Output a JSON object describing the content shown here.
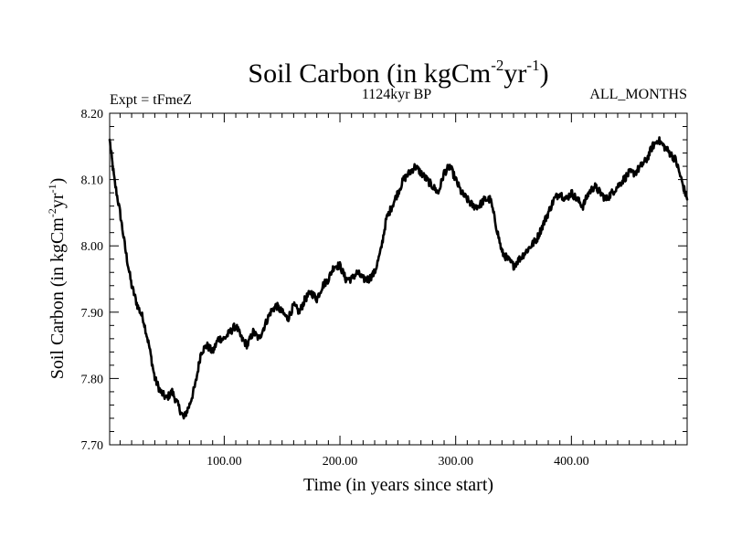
{
  "chart_data": {
    "type": "line",
    "title": {
      "main": "Soil Carbon (in kgCm",
      "sup1": "-2",
      "mid": "yr",
      "sup2": "-1",
      "end": ")"
    },
    "subtitle_left": "Expt = tFmeZ",
    "subtitle_center": "1124kyr BP",
    "subtitle_right": "ALL_MONTHS",
    "xlabel": "Time (in years since start)",
    "ylabel": {
      "main": "Soil Carbon (in kgCm",
      "sup1": "-2",
      "mid": "yr",
      "sup2": "-1",
      "end": ")"
    },
    "xlim": [
      1,
      500
    ],
    "ylim": [
      7.7,
      8.2
    ],
    "xticks": [
      {
        "value": 100,
        "label": "100.00"
      },
      {
        "value": 200,
        "label": "200.00"
      },
      {
        "value": 300,
        "label": "300.00"
      },
      {
        "value": 400,
        "label": "400.00"
      }
    ],
    "yticks": [
      {
        "value": 7.7,
        "label": "7.70"
      },
      {
        "value": 7.8,
        "label": "7.80"
      },
      {
        "value": 7.9,
        "label": "7.90"
      },
      {
        "value": 8.0,
        "label": "8.00"
      },
      {
        "value": 8.1,
        "label": "8.10"
      },
      {
        "value": 8.2,
        "label": "8.20"
      }
    ],
    "series": [
      {
        "name": "Soil Carbon",
        "x": [
          1,
          5,
          10,
          15,
          20,
          25,
          30,
          35,
          40,
          45,
          50,
          55,
          60,
          65,
          70,
          75,
          80,
          85,
          90,
          95,
          100,
          105,
          110,
          115,
          120,
          125,
          130,
          135,
          140,
          145,
          150,
          155,
          160,
          165,
          170,
          175,
          180,
          185,
          190,
          195,
          200,
          205,
          210,
          215,
          220,
          225,
          230,
          235,
          240,
          245,
          250,
          255,
          260,
          265,
          270,
          275,
          280,
          285,
          290,
          295,
          300,
          305,
          310,
          315,
          320,
          325,
          330,
          335,
          340,
          345,
          350,
          355,
          360,
          365,
          370,
          375,
          380,
          385,
          390,
          395,
          400,
          405,
          410,
          415,
          420,
          425,
          430,
          435,
          440,
          445,
          450,
          455,
          460,
          465,
          470,
          475,
          480,
          485,
          490,
          495,
          500
        ],
        "values": [
          8.16,
          8.1,
          8.05,
          7.99,
          7.94,
          7.91,
          7.89,
          7.85,
          7.8,
          7.78,
          7.77,
          7.78,
          7.76,
          7.74,
          7.76,
          7.79,
          7.84,
          7.85,
          7.84,
          7.86,
          7.86,
          7.87,
          7.88,
          7.86,
          7.85,
          7.87,
          7.86,
          7.88,
          7.9,
          7.91,
          7.9,
          7.89,
          7.91,
          7.9,
          7.92,
          7.93,
          7.92,
          7.94,
          7.95,
          7.97,
          7.97,
          7.95,
          7.95,
          7.96,
          7.95,
          7.95,
          7.96,
          7.99,
          8.04,
          8.06,
          8.08,
          8.1,
          8.11,
          8.12,
          8.11,
          8.1,
          8.09,
          8.08,
          8.11,
          8.12,
          8.1,
          8.08,
          8.07,
          8.06,
          8.06,
          8.07,
          8.07,
          8.03,
          7.99,
          7.98,
          7.97,
          7.98,
          7.99,
          8.0,
          8.01,
          8.03,
          8.05,
          8.07,
          8.08,
          8.07,
          8.08,
          8.07,
          8.06,
          8.08,
          8.09,
          8.08,
          8.07,
          8.08,
          8.09,
          8.1,
          8.11,
          8.11,
          8.12,
          8.13,
          8.15,
          8.16,
          8.15,
          8.14,
          8.13,
          8.1,
          8.07
        ]
      }
    ]
  }
}
